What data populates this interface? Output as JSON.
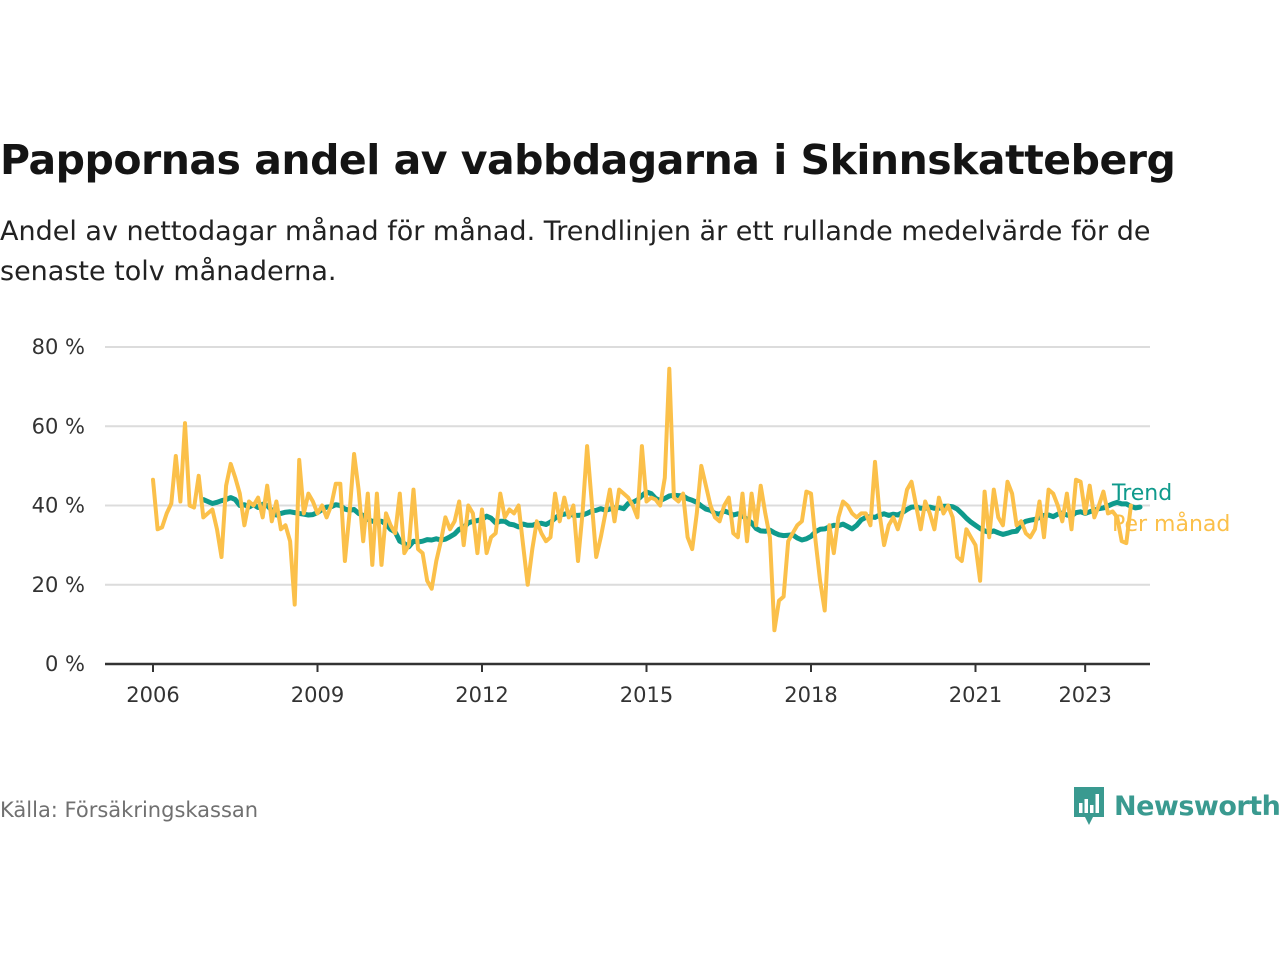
{
  "title": "Pappornas andel av vabbdagarna i Skinnskatteberg",
  "subtitle": "Andel av nettodagar månad för månad. Trendlinjen är ett rullande medelvärde för de senaste tolv månaderna.",
  "source": "Källa: Försäkringskassan",
  "brand": {
    "name": "Newsworthy",
    "icon": "newsworthy-logo-icon",
    "color": "#3a9a90"
  },
  "chart_data": {
    "type": "line",
    "title": "Pappornas andel av vabbdagarna i Skinnskatteberg",
    "subtitle": "Andel av nettodagar månad för månad. Trendlinjen är ett rullande medelvärde för de senaste tolv månaderna.",
    "xlabel": "",
    "ylabel": "",
    "x_range": [
      "2006-01",
      "2023-05"
    ],
    "x_ticks": [
      "2006",
      "2009",
      "2012",
      "2015",
      "2018",
      "2021",
      "2023"
    ],
    "y_ticks": [
      "0 %",
      "20 %",
      "40 %",
      "60 %",
      "80 %"
    ],
    "ylim": [
      0,
      80
    ],
    "grid": true,
    "legend": "right, at line ends",
    "series": [
      {
        "name": "Per månad",
        "color": "#fbc04a",
        "x_start": "2006-01",
        "values": [
          46.5,
          34,
          34.5,
          38,
          40.5,
          52.5,
          41,
          60.8,
          40,
          39.5,
          47.5,
          37,
          38,
          39,
          34,
          27,
          45,
          50.5,
          47,
          43,
          35,
          41,
          40,
          42,
          37,
          45,
          36,
          41,
          34,
          35,
          31,
          15,
          51.5,
          38,
          43,
          41,
          38,
          40,
          37,
          40,
          45.5,
          45.5,
          26,
          38,
          53,
          44,
          31,
          43,
          25,
          43,
          25,
          38,
          35,
          33,
          43,
          28,
          30,
          44,
          29,
          28,
          21,
          19,
          26,
          31,
          37,
          34,
          36,
          41,
          30,
          40,
          38,
          28,
          39,
          28,
          32,
          33,
          43,
          37,
          39,
          38,
          40,
          30,
          20,
          29,
          36,
          33,
          31,
          32,
          43,
          36,
          42,
          37,
          40,
          26,
          38,
          55,
          41,
          27,
          32,
          38,
          44,
          36,
          44,
          43,
          42,
          40,
          37,
          55,
          41,
          42,
          41.5,
          40,
          47,
          74.5,
          42,
          41,
          43,
          32,
          29,
          38,
          50,
          45,
          40,
          37,
          36,
          40,
          42,
          33,
          32,
          43,
          31,
          43,
          35,
          45,
          38,
          32,
          8.5,
          16,
          17,
          31,
          33,
          35,
          36,
          43.5,
          43,
          31,
          21,
          13.5,
          35,
          28,
          37,
          41,
          40,
          38,
          37,
          38,
          38,
          35,
          51,
          38,
          30,
          35,
          37,
          34,
          38,
          44,
          46,
          40,
          34,
          41,
          38,
          34,
          42,
          38,
          40,
          37,
          27,
          26,
          34,
          32,
          30,
          21,
          43.5,
          32,
          44,
          37,
          35,
          46,
          43,
          35,
          36,
          33,
          32,
          34,
          41,
          32,
          44,
          43,
          40,
          36,
          43,
          34,
          46.5,
          46,
          38,
          45,
          37,
          40,
          43.5,
          38,
          38.5,
          37,
          31,
          30.5,
          40
        ]
      },
      {
        "name": "Trend",
        "color": "#0f9a8c",
        "x_start": "2006-12",
        "values": [
          41.5,
          41,
          40.5,
          40.8,
          41.2,
          41.5,
          42,
          41.5,
          40,
          40.2,
          39.6,
          40.2,
          39.5,
          40.3,
          40,
          38.8,
          37.6,
          38,
          38.3,
          38.4,
          38.2,
          38,
          37.8,
          37.6,
          37.7,
          38.2,
          39,
          39.6,
          39.7,
          40.2,
          40,
          39.1,
          38.8,
          39,
          38,
          37.5,
          36.5,
          36,
          36,
          36,
          35.3,
          34,
          33.3,
          31,
          30.4,
          29.6,
          31,
          30.8,
          31,
          31.4,
          31.3,
          31.6,
          31.3,
          31.5,
          32.1,
          32.8,
          34,
          34.5,
          35.6,
          36,
          36.2,
          36.5,
          37.3,
          36.8,
          35.6,
          36,
          36,
          35.3,
          35.1,
          34.6,
          35.3,
          35,
          35,
          35.4,
          35.5,
          35.2,
          35.8,
          36.8,
          37.7,
          37.8,
          38.1,
          37.5,
          37.5,
          37.6,
          38,
          38.6,
          38.8,
          39.2,
          38.8,
          39.1,
          39.4,
          39.5,
          39.2,
          40.5,
          40.8,
          41.4,
          42.5,
          43.4,
          43,
          41.8,
          41.2,
          41.8,
          42.4,
          42.6,
          42.5,
          42.4,
          41.7,
          41.3,
          40.8,
          39.9,
          39.1,
          38.8,
          38,
          37.8,
          38.6,
          38.2,
          37.6,
          37.9,
          37.4,
          36.5,
          35.6,
          34.2,
          33.6,
          33.5,
          33.8,
          33.1,
          32.6,
          32.4,
          32.5,
          32.6,
          31.8,
          31.3,
          31.6,
          32.2,
          33.4,
          34,
          34.1,
          34.6,
          35,
          34.9,
          35.3,
          34.7,
          34.1,
          35,
          36.4,
          37,
          37.2,
          37,
          37.6,
          37.9,
          37.5,
          37.8,
          37.6,
          38.2,
          39,
          39.6,
          39.7,
          39.3,
          39.3,
          39.6,
          39.3,
          39.3,
          39.8,
          39.8,
          39.7,
          39.1,
          38,
          36.8,
          35.8,
          35,
          34.2,
          33.6,
          33.2,
          33.6,
          33.1,
          32.7,
          33,
          33.4,
          33.5,
          35.3,
          36,
          36.3,
          36.5,
          37,
          37.5,
          37.6,
          37.2,
          37.8,
          38.1,
          37.6,
          37.4,
          38.2,
          38.4,
          38,
          38.4,
          38.8,
          39.2,
          39.4,
          39.9,
          40.4,
          40.8,
          40.4,
          40.4,
          39.8,
          39.4,
          39.6
        ]
      }
    ]
  }
}
